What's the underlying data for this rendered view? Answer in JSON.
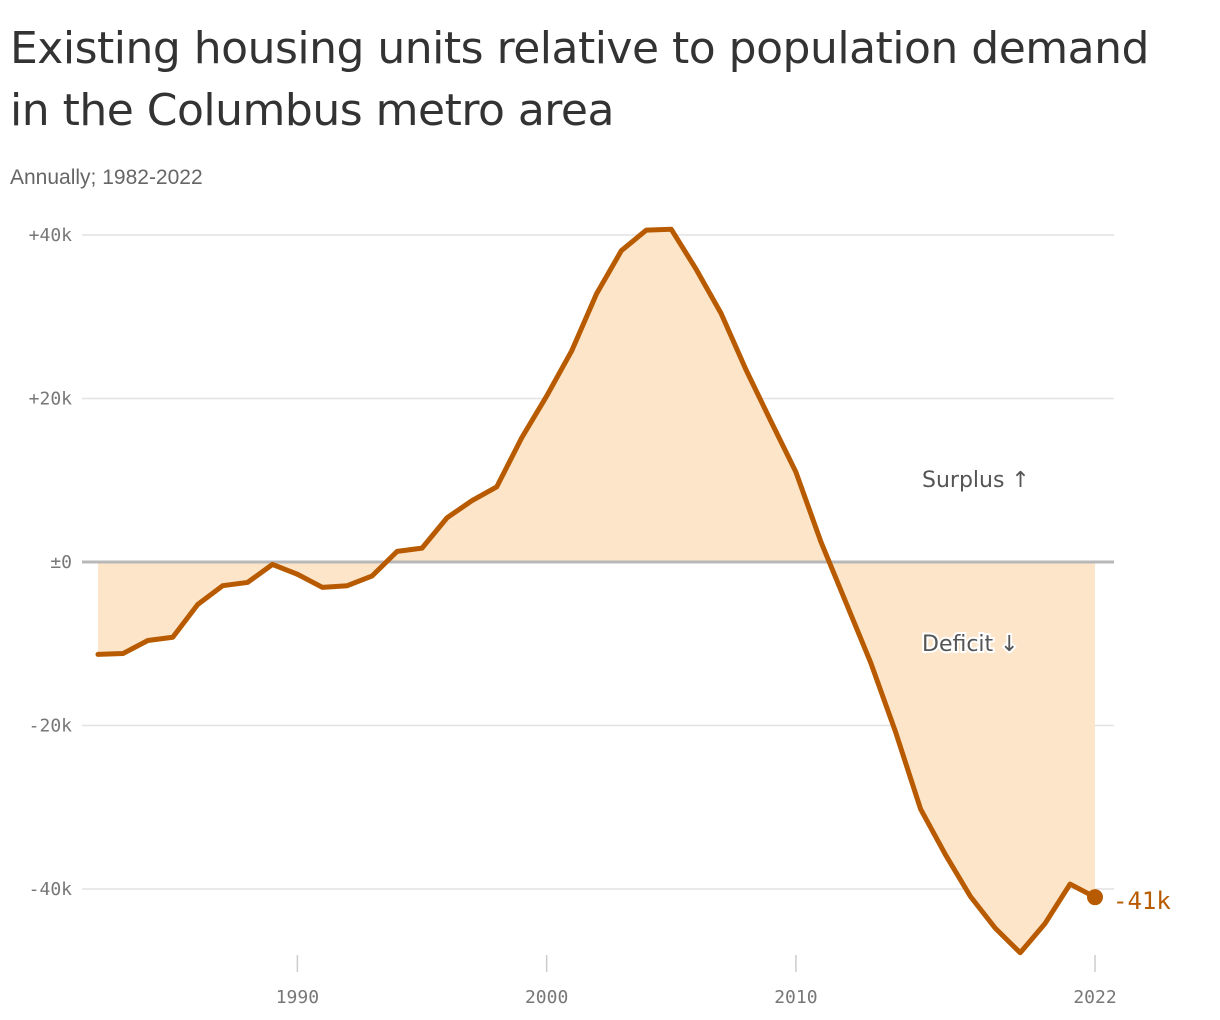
{
  "chart_data": {
    "type": "area",
    "title": "Existing housing units relative to population demand in the Columbus metro area",
    "subtitle": "Annually; 1982-2022",
    "x": [
      1982,
      1983,
      1984,
      1985,
      1986,
      1987,
      1988,
      1989,
      1990,
      1991,
      1992,
      1993,
      1994,
      1995,
      1996,
      1997,
      1998,
      1999,
      2000,
      2001,
      2002,
      2003,
      2004,
      2005,
      2006,
      2007,
      2008,
      2009,
      2010,
      2011,
      2012,
      2013,
      2014,
      2015,
      2016,
      2017,
      2018,
      2019,
      2020,
      2021,
      2022
    ],
    "series": [
      {
        "values": [
          -11300,
          -11200,
          -9600,
          -9200,
          -5200,
          -2900,
          -2500,
          -300,
          -1500,
          -3100,
          -2900,
          -1700,
          1300,
          1700,
          5400,
          7500,
          9200,
          15200,
          20300,
          25800,
          32800,
          38100,
          40600,
          40700,
          35800,
          30400,
          23500,
          17200,
          11000,
          2500,
          -4900,
          -12300,
          -20800,
          -30200,
          -35800,
          -40900,
          -44800,
          -47800,
          -44200,
          -39400,
          -41000
        ]
      }
    ],
    "y_ticks": [
      "+40k",
      "+20k",
      "±0",
      "-20k",
      "-40k"
    ],
    "y_tick_values": [
      40000,
      20000,
      0,
      -20000,
      -40000
    ],
    "x_ticks": [
      "1990",
      "2000",
      "2010",
      "2022"
    ],
    "x_tick_values": [
      1990,
      2000,
      2010,
      2022
    ],
    "xlim": [
      1982,
      2022
    ],
    "ylim": [
      -48500,
      41500
    ],
    "grid": true,
    "annotations": {
      "surplus": "Surplus ↑",
      "deficit": "Deficit ↓"
    },
    "end_label": "-41k",
    "colors": {
      "line": "#b85a00",
      "fill": "#fde5c9",
      "grid": "#e2e2e2",
      "zero_line": "#b8b8b8"
    }
  }
}
